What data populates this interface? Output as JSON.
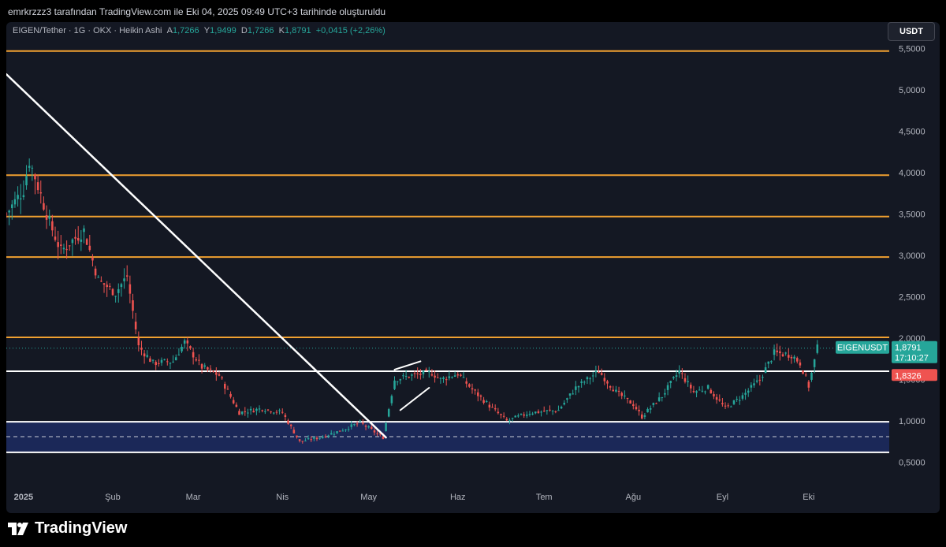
{
  "header": {
    "attribution": "emrkrzzz3 tarafından TradingView.com ile Eki 04, 2025 09:49 UTC+3 tarihinde oluşturuldu"
  },
  "legend": {
    "symbol": "EIGEN/Tether · 1G · OKX · Heikin Ashi",
    "open_label": "A",
    "open_value": "1,7266",
    "high_label": "Y",
    "high_value": "1,9499",
    "low_label": "D",
    "low_value": "1,7266",
    "close_label": "K",
    "close_value": "1,8791",
    "change": "+0,0415 (+2,26%)"
  },
  "currency_button": "USDT",
  "brand": "TradingView",
  "colors": {
    "background": "#141823",
    "up": "#26a69a",
    "down": "#ef5350",
    "level": "#f0a030",
    "trendline": "#ffffff",
    "zone": "#1e2d6b"
  },
  "price_tags": {
    "symbol": "EIGENUSDT",
    "last": "1,8791",
    "countdown": "17:10:27",
    "level": "1,8326"
  },
  "chart_data": {
    "type": "candlestick",
    "style": "Heikin Ashi",
    "y_axis": {
      "range": [
        0.2,
        5.82
      ],
      "ticks": [
        {
          "value": 0.5,
          "label": "0,5000"
        },
        {
          "value": 1.0,
          "label": "1,0000"
        },
        {
          "value": 1.5,
          "label": "1,5000"
        },
        {
          "value": 2.0,
          "label": "2,0000"
        },
        {
          "value": 2.5,
          "label": "2,5000"
        },
        {
          "value": 3.0,
          "label": "3,0000"
        },
        {
          "value": 3.5,
          "label": "3,5000"
        },
        {
          "value": 4.0,
          "label": "4,0000"
        },
        {
          "value": 4.5,
          "label": "4,5000"
        },
        {
          "value": 5.0,
          "label": "5,0000"
        },
        {
          "value": 5.5,
          "label": "5,5000"
        }
      ]
    },
    "x_axis": {
      "range": [
        "2024-12-26",
        "2025-10-29"
      ],
      "ticks": [
        {
          "date": "2025-01-01",
          "label": "2025",
          "bold": true
        },
        {
          "date": "2025-02-01",
          "label": "Şub"
        },
        {
          "date": "2025-03-01",
          "label": "Mar"
        },
        {
          "date": "2025-04-01",
          "label": "Nis"
        },
        {
          "date": "2025-05-01",
          "label": "May"
        },
        {
          "date": "2025-06-01",
          "label": "Haz"
        },
        {
          "date": "2025-07-01",
          "label": "Tem"
        },
        {
          "date": "2025-08-01",
          "label": "Ağu"
        },
        {
          "date": "2025-09-01",
          "label": "Eyl"
        },
        {
          "date": "2025-10-01",
          "label": "Eki"
        }
      ]
    },
    "horizontal_levels": [
      {
        "value": 5.47,
        "color": "#f0a030"
      },
      {
        "value": 3.97,
        "color": "#f0a030"
      },
      {
        "value": 3.47,
        "color": "#f0a030"
      },
      {
        "value": 2.98,
        "color": "#f0a030"
      },
      {
        "value": 2.01,
        "color": "#f0a030"
      },
      {
        "value": 1.6,
        "color": "#ffffff"
      },
      {
        "value": 0.99,
        "color": "#ffffff"
      },
      {
        "value": 0.62,
        "color": "#ffffff"
      }
    ],
    "demand_zone": {
      "top": 0.99,
      "bottom": 0.62,
      "mid": 0.81
    },
    "trendlines": [
      {
        "from": {
          "date": "2024-12-26",
          "value": 5.19
        },
        "to": {
          "date": "2025-05-07",
          "value": 0.8
        },
        "width": 2.5
      },
      {
        "from": {
          "date": "2025-05-10",
          "value": 1.62
        },
        "to": {
          "date": "2025-05-19",
          "value": 1.72
        },
        "width": 2
      },
      {
        "from": {
          "date": "2025-05-12",
          "value": 1.13
        },
        "to": {
          "date": "2025-05-22",
          "value": 1.4
        },
        "width": 2
      }
    ],
    "last_price": 1.8791,
    "close_path": [
      {
        "date": "2024-12-26",
        "value": 3.5
      },
      {
        "date": "2025-01-01",
        "value": 3.8
      },
      {
        "date": "2025-01-03",
        "value": 4.15
      },
      {
        "date": "2025-01-05",
        "value": 3.95
      },
      {
        "date": "2025-01-10",
        "value": 3.4
      },
      {
        "date": "2025-01-14",
        "value": 3.05
      },
      {
        "date": "2025-01-17",
        "value": 3.15
      },
      {
        "date": "2025-01-22",
        "value": 3.3
      },
      {
        "date": "2025-01-27",
        "value": 2.7
      },
      {
        "date": "2025-02-02",
        "value": 2.55
      },
      {
        "date": "2025-02-06",
        "value": 2.75
      },
      {
        "date": "2025-02-10",
        "value": 1.9
      },
      {
        "date": "2025-02-15",
        "value": 1.7
      },
      {
        "date": "2025-02-22",
        "value": 1.72
      },
      {
        "date": "2025-02-26",
        "value": 1.95
      },
      {
        "date": "2025-03-04",
        "value": 1.65
      },
      {
        "date": "2025-03-10",
        "value": 1.55
      },
      {
        "date": "2025-03-17",
        "value": 1.1
      },
      {
        "date": "2025-03-25",
        "value": 1.15
      },
      {
        "date": "2025-04-01",
        "value": 1.1
      },
      {
        "date": "2025-04-07",
        "value": 0.75
      },
      {
        "date": "2025-04-14",
        "value": 0.8
      },
      {
        "date": "2025-04-21",
        "value": 0.88
      },
      {
        "date": "2025-04-28",
        "value": 0.98
      },
      {
        "date": "2025-05-06",
        "value": 0.8
      },
      {
        "date": "2025-05-10",
        "value": 1.5
      },
      {
        "date": "2025-05-16",
        "value": 1.55
      },
      {
        "date": "2025-05-23",
        "value": 1.58
      },
      {
        "date": "2025-05-26",
        "value": 1.5
      },
      {
        "date": "2025-06-01",
        "value": 1.57
      },
      {
        "date": "2025-06-06",
        "value": 1.38
      },
      {
        "date": "2025-06-13",
        "value": 1.15
      },
      {
        "date": "2025-06-18",
        "value": 1.0
      },
      {
        "date": "2025-06-26",
        "value": 1.1
      },
      {
        "date": "2025-07-06",
        "value": 1.13
      },
      {
        "date": "2025-07-12",
        "value": 1.4
      },
      {
        "date": "2025-07-20",
        "value": 1.6
      },
      {
        "date": "2025-07-26",
        "value": 1.35
      },
      {
        "date": "2025-08-01",
        "value": 1.2
      },
      {
        "date": "2025-08-04",
        "value": 1.05
      },
      {
        "date": "2025-08-11",
        "value": 1.3
      },
      {
        "date": "2025-08-17",
        "value": 1.6
      },
      {
        "date": "2025-08-22",
        "value": 1.35
      },
      {
        "date": "2025-08-27",
        "value": 1.4
      },
      {
        "date": "2025-09-02",
        "value": 1.15
      },
      {
        "date": "2025-09-08",
        "value": 1.3
      },
      {
        "date": "2025-09-14",
        "value": 1.5
      },
      {
        "date": "2025-09-19",
        "value": 1.82
      },
      {
        "date": "2025-09-25",
        "value": 1.8
      },
      {
        "date": "2025-09-28",
        "value": 1.7
      },
      {
        "date": "2025-10-01",
        "value": 1.42
      },
      {
        "date": "2025-10-04",
        "value": 1.8791
      }
    ]
  }
}
